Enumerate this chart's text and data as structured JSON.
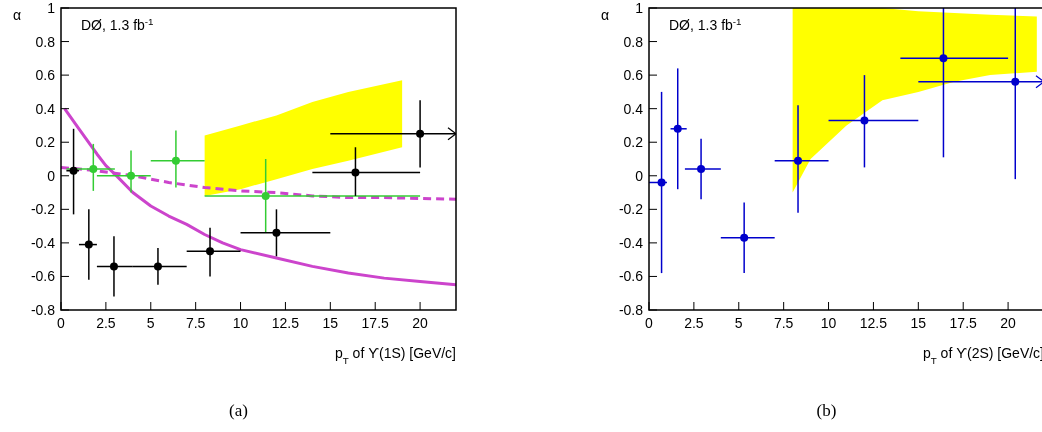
{
  "chart_data": [
    {
      "type": "scatter",
      "ylabel": "α",
      "xlabel": "p$_{T}$ of ϒ(1S) [GeV/c]",
      "annotations": [
        "DØ, 1.3 fb$^{-1}$",
        "(a)"
      ],
      "xlim": [
        0,
        22
      ],
      "ylim": [
        -0.8,
        1
      ],
      "xticks": [
        0,
        2.5,
        5,
        7.5,
        10,
        12.5,
        15,
        17.5,
        20
      ],
      "yticks": [
        -0.8,
        -0.6,
        -0.4,
        -0.2,
        0,
        0.2,
        0.4,
        0.6,
        0.8,
        1
      ],
      "grid": false,
      "series": [
        {
          "type": "line",
          "color": "#ffff00",
          "x": [
            8,
            10,
            12,
            14,
            16,
            19
          ],
          "values": [
            null,
            null,
            null,
            null,
            null,
            null
          ],
          "lower": [
            -0.12,
            -0.08,
            -0.02,
            0.04,
            0.09,
            0.17
          ],
          "upper": [
            0.24,
            0.3,
            0.36,
            0.44,
            0.5,
            0.57
          ]
        },
        {
          "type": "line",
          "color": "#cc44cc",
          "line_style": "solid",
          "x": [
            0.2,
            1,
            2,
            2.5,
            3,
            4,
            5,
            6,
            7,
            8,
            9,
            10,
            12,
            14,
            16,
            18,
            20,
            22
          ],
          "values": [
            0.4,
            0.28,
            0.13,
            0.06,
            0.01,
            -0.1,
            -0.18,
            -0.24,
            -0.29,
            -0.35,
            -0.4,
            -0.44,
            -0.49,
            -0.54,
            -0.58,
            -0.61,
            -0.63,
            -0.65
          ]
        },
        {
          "type": "line",
          "color": "#cc44cc",
          "line_style": "dashed",
          "x": [
            0,
            2,
            4,
            6,
            8,
            10,
            12,
            14,
            16,
            18,
            22
          ],
          "values": [
            0.05,
            0.03,
            0.0,
            -0.04,
            -0.07,
            -0.09,
            -0.1,
            -0.12,
            -0.13,
            -0.13,
            -0.14
          ]
        },
        {
          "type": "scatter",
          "color": "#33cc33",
          "marker": "circle",
          "x": [
            1.8,
            3.9,
            6.4,
            11.4
          ],
          "values": [
            0.04,
            0.0,
            0.09,
            -0.12
          ],
          "errors": [
            [
              -0.09,
              0.19
            ],
            [
              -0.1,
              0.15
            ],
            [
              -0.07,
              0.27
            ],
            [
              -0.34,
              0.1
            ]
          ],
          "xerrors": [
            [
              0.3,
              3
            ],
            [
              2,
              5
            ],
            [
              5,
              8
            ],
            [
              8,
              20
            ]
          ]
        },
        {
          "type": "scatter",
          "color": "#000000",
          "marker": "circle",
          "x": [
            0.7,
            1.55,
            2.95,
            5.4,
            8.3,
            12.0,
            16.4,
            20.0
          ],
          "values": [
            0.03,
            -0.41,
            -0.54,
            -0.54,
            -0.45,
            -0.34,
            0.02,
            0.25
          ],
          "errors": [
            [
              -0.23,
              0.28
            ],
            [
              -0.62,
              -0.2
            ],
            [
              -0.72,
              -0.36
            ],
            [
              -0.65,
              -0.43
            ],
            [
              -0.6,
              -0.31
            ],
            [
              -0.48,
              -0.2
            ],
            [
              -0.12,
              0.17
            ],
            [
              0.05,
              0.45
            ]
          ],
          "xerrors": [
            [
              0.3,
              1
            ],
            [
              1,
              2
            ],
            [
              2,
              4
            ],
            [
              4,
              7
            ],
            [
              7,
              10
            ],
            [
              10,
              15
            ],
            [
              14,
              20
            ],
            [
              15,
              22
            ]
          ]
        }
      ]
    },
    {
      "type": "scatter",
      "ylabel": "α",
      "xlabel": "p$_{T}$ of ϒ(2S) [GeV/c]",
      "annotations": [
        "DØ, 1.3 fb$^{-1}$",
        "(b)"
      ],
      "xlim": [
        0,
        22
      ],
      "ylim": [
        -0.8,
        1
      ],
      "xticks": [
        0,
        2.5,
        5,
        7.5,
        10,
        12.5,
        15,
        17.5,
        20
      ],
      "yticks": [
        -0.8,
        -0.6,
        -0.4,
        -0.2,
        0,
        0.2,
        0.4,
        0.6,
        0.8,
        1
      ],
      "grid": false,
      "series": [
        {
          "type": "line",
          "color": "#ffff00",
          "x": [
            8,
            9,
            11,
            13,
            15,
            17,
            19,
            21.6
          ],
          "values": [
            null,
            null,
            null,
            null,
            null,
            null,
            null,
            null
          ],
          "lower": [
            -0.1,
            0.1,
            0.3,
            0.45,
            0.5,
            0.56,
            0.6,
            0.62
          ],
          "upper": [
            1,
            1,
            1,
            1,
            0.98,
            0.97,
            0.96,
            0.95
          ]
        },
        {
          "type": "scatter",
          "color": "#0000cc",
          "marker": "circle",
          "x": [
            0.7,
            1.6,
            2.9,
            5.3,
            8.3,
            12.0,
            16.4,
            20.4
          ],
          "values": [
            -0.04,
            0.28,
            0.04,
            -0.37,
            0.09,
            0.33,
            0.7,
            0.56
          ],
          "errors": [
            [
              -0.58,
              0.5
            ],
            [
              -0.08,
              0.64
            ],
            [
              -0.14,
              0.22
            ],
            [
              -0.58,
              -0.16
            ],
            [
              -0.22,
              0.42
            ],
            [
              0.05,
              0.6
            ],
            [
              0.11,
              1
            ],
            [
              -0.02,
              1
            ]
          ],
          "xerrors": [
            [
              0,
              1
            ],
            [
              1.2,
              2.1
            ],
            [
              2,
              4
            ],
            [
              4,
              7
            ],
            [
              7,
              10
            ],
            [
              10,
              15
            ],
            [
              14,
              20
            ],
            [
              15,
              22
            ]
          ]
        }
      ]
    }
  ]
}
